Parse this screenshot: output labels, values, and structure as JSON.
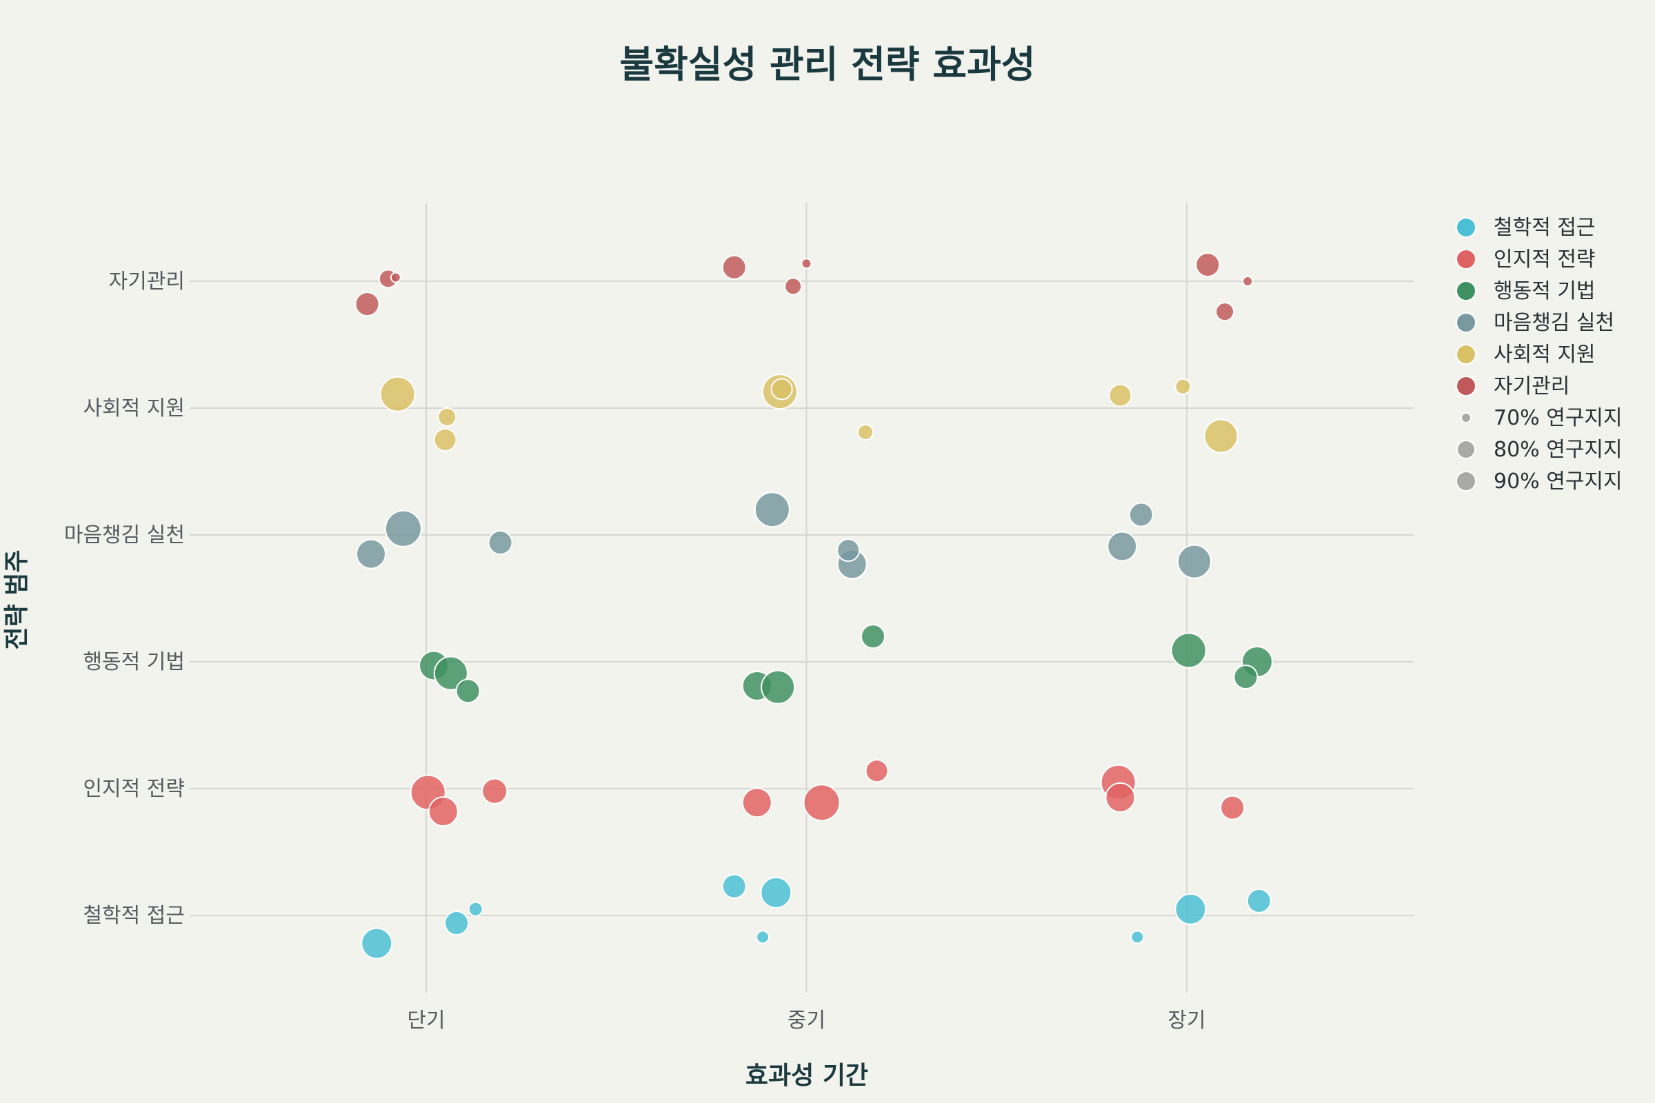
{
  "chart_data": {
    "type": "scatter",
    "title": "불확실성 관리 전략 효과성",
    "xlabel": "효과성 기간",
    "ylabel": "전략 범주",
    "x_categories": [
      "단기",
      "중기",
      "장기"
    ],
    "y_categories": [
      "철학적 접근",
      "인지적 전략",
      "행동적 기법",
      "마음챙김 실천",
      "사회적 지원",
      "자기관리"
    ],
    "grid": true,
    "legend_position": "right",
    "series": [
      {
        "name": "철학적 접근",
        "color": "#4bbfd4",
        "points": [
          {
            "x": "단기",
            "y": "철학적 접근",
            "support": 87,
            "jx": -0.13,
            "jy": -0.22
          },
          {
            "x": "단기",
            "y": "철학적 접근",
            "support": 82,
            "jx": 0.08,
            "jy": -0.06
          },
          {
            "x": "단기",
            "y": "철학적 접근",
            "support": 75,
            "jx": 0.13,
            "jy": 0.05
          },
          {
            "x": "중기",
            "y": "철학적 접근",
            "support": 82,
            "jx": -0.19,
            "jy": 0.23
          },
          {
            "x": "중기",
            "y": "철학적 접근",
            "support": 87,
            "jx": -0.08,
            "jy": 0.18
          },
          {
            "x": "중기",
            "y": "철학적 접근",
            "support": 74,
            "jx": -0.115,
            "jy": -0.17
          },
          {
            "x": "장기",
            "y": "철학적 접근",
            "support": 87,
            "jx": 0.01,
            "jy": 0.05
          },
          {
            "x": "장기",
            "y": "철학적 접근",
            "support": 82,
            "jx": 0.19,
            "jy": 0.115
          },
          {
            "x": "장기",
            "y": "철학적 접근",
            "support": 74,
            "jx": -0.13,
            "jy": -0.17
          }
        ]
      },
      {
        "name": "인지적 전략",
        "color": "#e06363",
        "points": [
          {
            "x": "단기",
            "y": "인지적 전략",
            "support": 90,
            "jx": 0.005,
            "jy": -0.03
          },
          {
            "x": "단기",
            "y": "인지적 전략",
            "support": 86,
            "jx": 0.045,
            "jy": -0.18
          },
          {
            "x": "단기",
            "y": "인지적 전략",
            "support": 83,
            "jx": 0.18,
            "jy": -0.02
          },
          {
            "x": "중기",
            "y": "인지적 전략",
            "support": 86,
            "jx": -0.13,
            "jy": -0.11
          },
          {
            "x": "중기",
            "y": "인지적 전략",
            "support": 91,
            "jx": 0.04,
            "jy": -0.11
          },
          {
            "x": "중기",
            "y": "인지적 전략",
            "support": 81,
            "jx": 0.185,
            "jy": 0.14
          },
          {
            "x": "장기",
            "y": "인지적 전략",
            "support": 90,
            "jx": -0.18,
            "jy": 0.05
          },
          {
            "x": "장기",
            "y": "인지적 전략",
            "support": 86,
            "jx": -0.175,
            "jy": -0.07
          },
          {
            "x": "장기",
            "y": "인지적 전략",
            "support": 82,
            "jx": 0.12,
            "jy": -0.15
          }
        ]
      },
      {
        "name": "행동적 기법",
        "color": "#3f9060",
        "points": [
          {
            "x": "단기",
            "y": "행동적 기법",
            "support": 86,
            "jx": 0.02,
            "jy": -0.03
          },
          {
            "x": "단기",
            "y": "행동적 기법",
            "support": 89,
            "jx": 0.065,
            "jy": -0.09
          },
          {
            "x": "단기",
            "y": "행동적 기법",
            "support": 82,
            "jx": 0.11,
            "jy": -0.23
          },
          {
            "x": "중기",
            "y": "행동적 기법",
            "support": 86,
            "jx": -0.13,
            "jy": -0.19
          },
          {
            "x": "중기",
            "y": "행동적 기법",
            "support": 89,
            "jx": -0.075,
            "jy": -0.2
          },
          {
            "x": "중기",
            "y": "행동적 기법",
            "support": 82,
            "jx": 0.175,
            "jy": 0.2
          },
          {
            "x": "장기",
            "y": "행동적 기법",
            "support": 90,
            "jx": 0.005,
            "jy": 0.09
          },
          {
            "x": "장기",
            "y": "행동적 기법",
            "support": 87,
            "jx": 0.185,
            "jy": 0.0
          },
          {
            "x": "장기",
            "y": "행동적 기법",
            "support": 82,
            "jx": 0.155,
            "jy": -0.12
          }
        ]
      },
      {
        "name": "마음챙김 실천",
        "color": "#7899a0",
        "points": [
          {
            "x": "단기",
            "y": "마음챙김 실천",
            "support": 91,
            "jx": -0.06,
            "jy": 0.05
          },
          {
            "x": "단기",
            "y": "마음챙김 실천",
            "support": 86,
            "jx": -0.145,
            "jy": -0.15
          },
          {
            "x": "단기",
            "y": "마음챙김 실천",
            "support": 82,
            "jx": 0.195,
            "jy": -0.06
          },
          {
            "x": "중기",
            "y": "마음챙김 실천",
            "support": 90,
            "jx": -0.09,
            "jy": 0.2
          },
          {
            "x": "중기",
            "y": "마음챙김 실천",
            "support": 86,
            "jx": 0.12,
            "jy": -0.23
          },
          {
            "x": "중기",
            "y": "마음챙김 실천",
            "support": 81,
            "jx": 0.11,
            "jy": -0.12
          },
          {
            "x": "장기",
            "y": "마음챙김 실천",
            "support": 89,
            "jx": 0.02,
            "jy": -0.21
          },
          {
            "x": "장기",
            "y": "마음챙김 실천",
            "support": 86,
            "jx": -0.17,
            "jy": -0.09
          },
          {
            "x": "장기",
            "y": "마음챙김 실천",
            "support": 82,
            "jx": -0.12,
            "jy": 0.16
          }
        ]
      },
      {
        "name": "사회적 지원",
        "color": "#d9c166",
        "points": [
          {
            "x": "단기",
            "y": "사회적 지원",
            "support": 90,
            "jx": -0.075,
            "jy": 0.11
          },
          {
            "x": "단기",
            "y": "사회적 지원",
            "support": 78,
            "jx": 0.055,
            "jy": -0.07
          },
          {
            "x": "단기",
            "y": "사회적 지원",
            "support": 81,
            "jx": 0.05,
            "jy": -0.25
          },
          {
            "x": "중기",
            "y": "사회적 지원",
            "support": 90,
            "jx": -0.07,
            "jy": 0.13
          },
          {
            "x": "중기",
            "y": "사회적 지원",
            "support": 80,
            "jx": -0.065,
            "jy": 0.15
          },
          {
            "x": "중기",
            "y": "사회적 지원",
            "support": 76,
            "jx": 0.155,
            "jy": -0.19
          },
          {
            "x": "장기",
            "y": "사회적 지원",
            "support": 81,
            "jx": -0.175,
            "jy": 0.1
          },
          {
            "x": "장기",
            "y": "사회적 지원",
            "support": 76,
            "jx": -0.01,
            "jy": 0.17
          },
          {
            "x": "장기",
            "y": "사회적 지원",
            "support": 89,
            "jx": 0.09,
            "jy": -0.22
          }
        ]
      },
      {
        "name": "자기관리",
        "color": "#c05a5a",
        "points": [
          {
            "x": "단기",
            "y": "자기관리",
            "support": 78,
            "jx": -0.1,
            "jy": 0.02
          },
          {
            "x": "단기",
            "y": "자기관리",
            "support": 72,
            "jx": -0.08,
            "jy": 0.03
          },
          {
            "x": "단기",
            "y": "자기관리",
            "support": 82,
            "jx": -0.155,
            "jy": -0.18
          },
          {
            "x": "중기",
            "y": "자기관리",
            "support": 82,
            "jx": -0.19,
            "jy": 0.11
          },
          {
            "x": "중기",
            "y": "자기관리",
            "support": 72,
            "jx": 0.0,
            "jy": 0.14
          },
          {
            "x": "중기",
            "y": "자기관리",
            "support": 77,
            "jx": -0.035,
            "jy": -0.04
          },
          {
            "x": "장기",
            "y": "자기관리",
            "support": 82,
            "jx": 0.055,
            "jy": 0.13
          },
          {
            "x": "장기",
            "y": "자기관리",
            "support": 72,
            "jx": 0.16,
            "jy": 0.0
          },
          {
            "x": "장기",
            "y": "자기관리",
            "support": 78,
            "jx": 0.1,
            "jy": -0.24
          }
        ]
      }
    ],
    "size_legend": [
      {
        "label": "70% 연구지지",
        "value": 70
      },
      {
        "label": "80% 연구지지",
        "value": 80
      },
      {
        "label": "90% 연구지지",
        "value": 90
      }
    ],
    "size_legend_color": "#a9aaa8"
  }
}
